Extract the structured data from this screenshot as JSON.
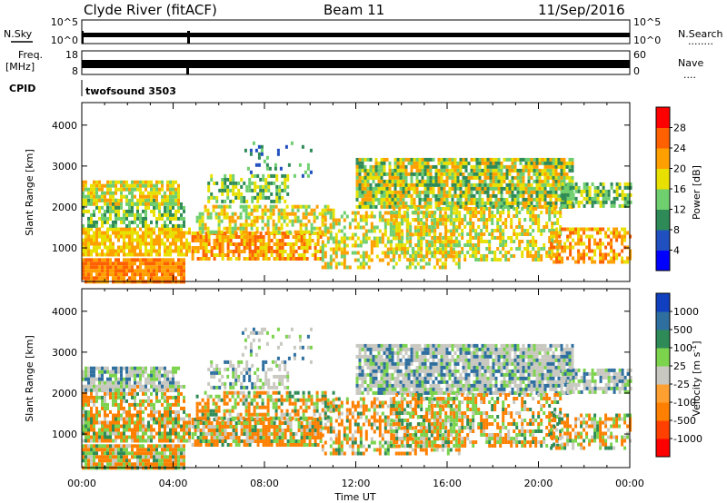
{
  "header": {
    "station": "Clyde River (fitACF)",
    "beam": "Beam 11",
    "date": "11/Sep/2016"
  },
  "top_panels": {
    "nsky": {
      "label": "N.Sky",
      "ticks": [
        "10^5",
        "10^0"
      ]
    },
    "nsearch": {
      "label": "N.Search",
      "ticks": [
        "10^5",
        "10^0"
      ],
      "legend_marker": "........"
    },
    "freq": {
      "label": "Freq.",
      "unit": "[MHz]",
      "ticks": [
        "18",
        "8"
      ]
    },
    "nave": {
      "label": "Nave",
      "ticks": [
        "60",
        "0"
      ],
      "legend_marker": "...."
    },
    "cpid": {
      "label": "CPID",
      "value": "twofsound 3503"
    }
  },
  "chart_data": [
    {
      "type": "heatmap",
      "title": "",
      "xlabel": "Time UT",
      "ylabel": "Slant Range [km]",
      "x_ticks": [
        "00:00",
        "04:00",
        "08:00",
        "12:00",
        "16:00",
        "20:00",
        "00:00"
      ],
      "xlim_hours": [
        0,
        24
      ],
      "ylim": [
        180,
        4550
      ],
      "y_ticks": [
        1000,
        2000,
        3000,
        4000
      ],
      "colorbar": {
        "label": "Power [dB]",
        "ticks": [
          "4",
          "8",
          "12",
          "16",
          "20",
          "24",
          "28"
        ],
        "colors": [
          "#0000ff",
          "#2050c0",
          "#2e8b57",
          "#6fcf6f",
          "#e8e000",
          "#ffa000",
          "#ff6000",
          "#ff0000"
        ]
      }
    },
    {
      "type": "heatmap",
      "title": "",
      "xlabel": "Time UT",
      "ylabel": "Slant Range [km]",
      "x_ticks": [
        "00:00",
        "04:00",
        "08:00",
        "12:00",
        "16:00",
        "20:00",
        "00:00"
      ],
      "xlim_hours": [
        0,
        24
      ],
      "ylim": [
        180,
        4550
      ],
      "y_ticks": [
        1000,
        2000,
        3000,
        4000
      ],
      "colorbar": {
        "label": "Velocity [m s^-1]",
        "ticks": [
          "1000",
          "500",
          "100",
          "25",
          "-25",
          "-100",
          "-500",
          "-1000"
        ],
        "colors": [
          "#1040c0",
          "#2e6fa0",
          "#2e8b57",
          "#7cd34c",
          "#c8c8c0",
          "#ffa030",
          "#ff8000",
          "#ff4000",
          "#ff0000"
        ]
      }
    }
  ],
  "xaxis": {
    "label": "Time UT"
  }
}
